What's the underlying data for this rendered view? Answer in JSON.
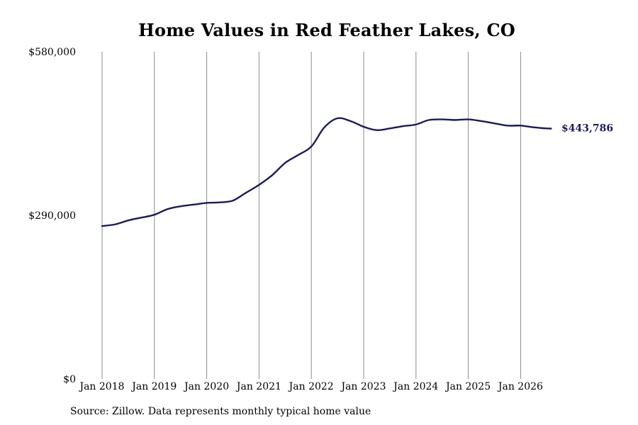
{
  "chart_data": {
    "type": "line",
    "title": "Home Values in Red Feather Lakes, CO",
    "xlabel": "",
    "ylabel": "",
    "ylim": [
      0,
      580000
    ],
    "y_ticks": [
      {
        "value": 0,
        "label": "$0"
      },
      {
        "value": 290000,
        "label": "$290,000"
      },
      {
        "value": 580000,
        "label": "$580,000"
      }
    ],
    "x_ticks": [
      {
        "value": "2018-01",
        "label": "Jan 2018"
      },
      {
        "value": "2019-01",
        "label": "Jan 2019"
      },
      {
        "value": "2020-01",
        "label": "Jan 2020"
      },
      {
        "value": "2021-01",
        "label": "Jan 2021"
      },
      {
        "value": "2022-01",
        "label": "Jan 2022"
      },
      {
        "value": "2023-01",
        "label": "Jan 2023"
      },
      {
        "value": "2024-01",
        "label": "Jan 2024"
      },
      {
        "value": "2025-01",
        "label": "Jan 2025"
      },
      {
        "value": "2026-01",
        "label": "Jan 2026"
      }
    ],
    "grid": {
      "vertical": true,
      "horizontal": false
    },
    "line_color": "#1a1a5e",
    "series": [
      {
        "points": [
          {
            "x": "2018-01",
            "y": 271000
          },
          {
            "x": "2018-04",
            "y": 274000
          },
          {
            "x": "2018-07",
            "y": 281000
          },
          {
            "x": "2018-10",
            "y": 286000
          },
          {
            "x": "2019-01",
            "y": 291000
          },
          {
            "x": "2019-04",
            "y": 301000
          },
          {
            "x": "2019-07",
            "y": 306000
          },
          {
            "x": "2019-10",
            "y": 309000
          },
          {
            "x": "2020-01",
            "y": 312000
          },
          {
            "x": "2020-04",
            "y": 313000
          },
          {
            "x": "2020-07",
            "y": 316000
          },
          {
            "x": "2020-10",
            "y": 330000
          },
          {
            "x": "2021-01",
            "y": 344000
          },
          {
            "x": "2021-04",
            "y": 361000
          },
          {
            "x": "2021-07",
            "y": 383000
          },
          {
            "x": "2021-10",
            "y": 397000
          },
          {
            "x": "2022-01",
            "y": 412000
          },
          {
            "x": "2022-04",
            "y": 446000
          },
          {
            "x": "2022-07",
            "y": 462000
          },
          {
            "x": "2022-10",
            "y": 457000
          },
          {
            "x": "2023-01",
            "y": 447000
          },
          {
            "x": "2023-04",
            "y": 441000
          },
          {
            "x": "2023-07",
            "y": 444000
          },
          {
            "x": "2023-10",
            "y": 448000
          },
          {
            "x": "2024-01",
            "y": 451000
          },
          {
            "x": "2024-04",
            "y": 459000
          },
          {
            "x": "2024-07",
            "y": 460000
          },
          {
            "x": "2024-10",
            "y": 459000
          },
          {
            "x": "2025-01",
            "y": 460000
          },
          {
            "x": "2025-04",
            "y": 457000
          },
          {
            "x": "2025-07",
            "y": 453000
          },
          {
            "x": "2025-10",
            "y": 449000
          },
          {
            "x": "2026-01",
            "y": 449000
          },
          {
            "x": "2026-04",
            "y": 446000
          },
          {
            "x": "2026-07",
            "y": 444000
          },
          {
            "x": "2026-08",
            "y": 443786
          }
        ],
        "end_label": "$443,786"
      }
    ],
    "source": "Source: Zillow. Data represents monthly typical home value"
  }
}
